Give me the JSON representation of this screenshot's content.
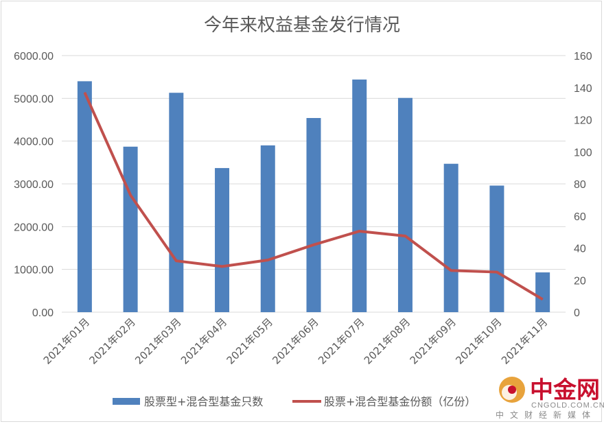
{
  "chart_data": {
    "type": "bar",
    "title": "今年来权益基金发行情况",
    "categories": [
      "2021年01月",
      "2021年02月",
      "2021年03月",
      "2021年04月",
      "2021年05月",
      "2021年06月",
      "2021年07月",
      "2021年08月",
      "2021年09月",
      "2021年10月",
      "2021年11月"
    ],
    "series": [
      {
        "name": "股票型+混合型基金只数",
        "type": "bar",
        "axis": "left",
        "color": "#4f81bd",
        "values": [
          5400,
          3870,
          5130,
          3370,
          3900,
          4540,
          5440,
          5010,
          3470,
          2960,
          930
        ]
      },
      {
        "name": "股票+混合型基金份额（亿份）",
        "type": "line",
        "axis": "right",
        "color": "#c0504d",
        "values": [
          137,
          73,
          32,
          28.5,
          32.5,
          42,
          50.5,
          47.5,
          26,
          25,
          8
        ]
      }
    ],
    "left_axis": {
      "min": 0,
      "max": 6000,
      "step": 1000,
      "tick_labels": [
        "0.00",
        "1000.00",
        "2000.00",
        "3000.00",
        "4000.00",
        "5000.00",
        "6000.00"
      ]
    },
    "right_axis": {
      "min": 0,
      "max": 160,
      "step": 20,
      "tick_labels": [
        "0",
        "20",
        "40",
        "60",
        "80",
        "100",
        "120",
        "140",
        "160"
      ]
    },
    "grid": "horizontal",
    "legend_position": "bottom"
  },
  "watermark": {
    "brand": "中金网",
    "domain": "CNGOLD.COM.CN",
    "tagline": "中文财经新媒体"
  }
}
